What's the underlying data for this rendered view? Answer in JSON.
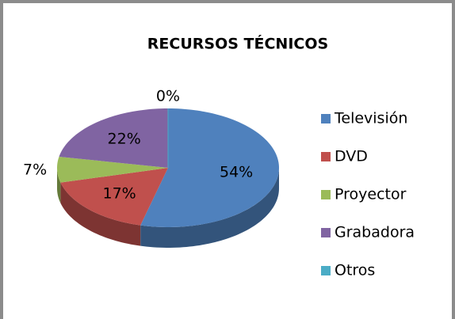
{
  "chart_data": {
    "type": "pie3d",
    "title": "RECURSOS TÉCNICOS",
    "categories": [
      "Televisión",
      "DVD",
      "Proyector",
      "Grabadora",
      "Otros"
    ],
    "values": [
      54,
      17,
      7,
      22,
      0
    ],
    "value_labels": [
      "54%",
      "17%",
      "7%",
      "22%",
      "0%"
    ],
    "colors": [
      "#4f81bd",
      "#c0504d",
      "#9bbb59",
      "#8064a2",
      "#4bacc6"
    ],
    "legend": "right"
  }
}
